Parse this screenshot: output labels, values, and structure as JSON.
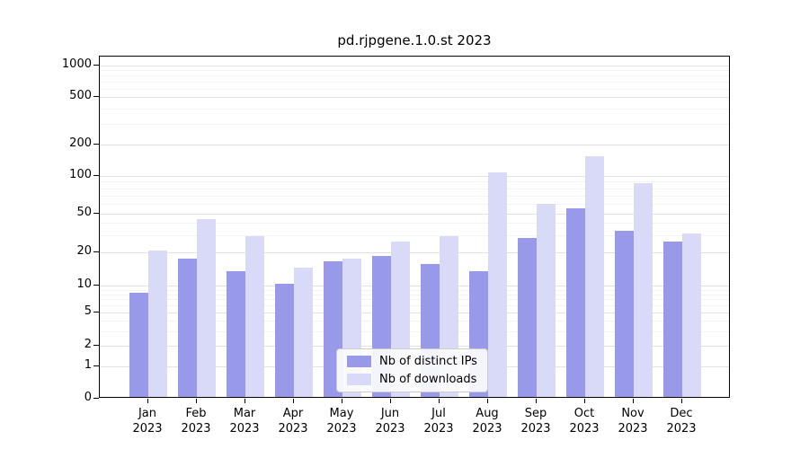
{
  "chart_data": {
    "type": "bar",
    "title": "pd.rjpgene.1.0.st 2023",
    "year": "2023",
    "categories": [
      "Jan",
      "Feb",
      "Mar",
      "Apr",
      "May",
      "Jun",
      "Jul",
      "Aug",
      "Sep",
      "Oct",
      "Nov",
      "Dec"
    ],
    "series": [
      {
        "name": "Nb of distinct IPs",
        "color": "#9999ea",
        "values": [
          8,
          17,
          13,
          10,
          16,
          18,
          15,
          13,
          27,
          53,
          32,
          25
        ]
      },
      {
        "name": "Nb of downloads",
        "color": "#d9d9f8",
        "values": [
          20,
          42,
          28,
          14,
          17,
          25,
          28,
          105,
          58,
          150,
          85,
          30
        ]
      }
    ],
    "y_ticks": [
      0,
      1,
      2,
      5,
      10,
      20,
      50,
      100,
      200,
      500,
      1000
    ],
    "scale": "symlog",
    "grid": true,
    "legend_position": "lower center",
    "xlabel": "",
    "ylabel": ""
  }
}
